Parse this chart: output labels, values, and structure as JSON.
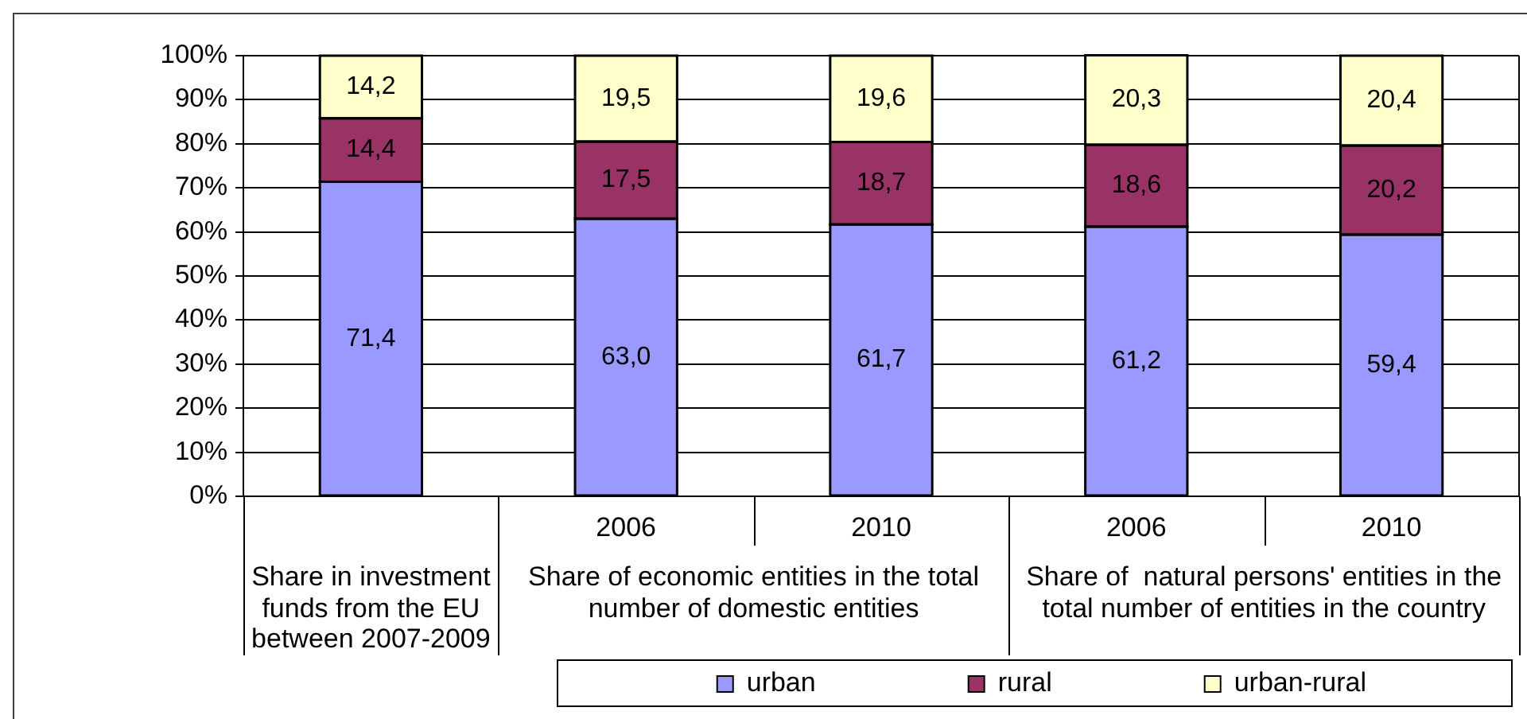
{
  "chart_data": {
    "type": "bar",
    "categories": [
      null,
      "2006",
      "2010",
      "2006",
      "2010"
    ],
    "series": [
      {
        "name": "urban",
        "color": "#9999ff",
        "values": [
          71.4,
          63.0,
          61.7,
          61.2,
          59.4
        ],
        "value_labels": [
          "71,4",
          "63,0",
          "61,7",
          "61,2",
          "59,4"
        ]
      },
      {
        "name": "rural",
        "color": "#993366",
        "values": [
          14.4,
          17.5,
          18.7,
          18.6,
          20.2
        ],
        "value_labels": [
          "14,4",
          "17,5",
          "18,7",
          "18,6",
          "20,2"
        ]
      },
      {
        "name": "urban-rural",
        "color": "#ffffcc",
        "values": [
          14.2,
          19.5,
          19.6,
          20.3,
          20.4
        ],
        "value_labels": [
          "14,2",
          "19,5",
          "19,6",
          "20,3",
          "20,4"
        ]
      }
    ],
    "stacked": true,
    "ylim": [
      0,
      100
    ],
    "yticks": [
      {
        "value": 0,
        "label": "0%"
      },
      {
        "value": 10,
        "label": "10%"
      },
      {
        "value": 20,
        "label": "20%"
      },
      {
        "value": 30,
        "label": "30%"
      },
      {
        "value": 40,
        "label": "40%"
      },
      {
        "value": 50,
        "label": "50%"
      },
      {
        "value": 60,
        "label": "60%"
      },
      {
        "value": 70,
        "label": "70%"
      },
      {
        "value": 80,
        "label": "80%"
      },
      {
        "value": 90,
        "label": "90%"
      },
      {
        "value": 100,
        "label": "100%"
      }
    ],
    "grid": "y",
    "legend": "bottom",
    "annotations": [
      "Share in investment funds from the EU between 2007-2009",
      "Share of economic entities in the total number of domestic entities",
      "Share of  natural persons' entities in the total number of entities in the country"
    ]
  }
}
